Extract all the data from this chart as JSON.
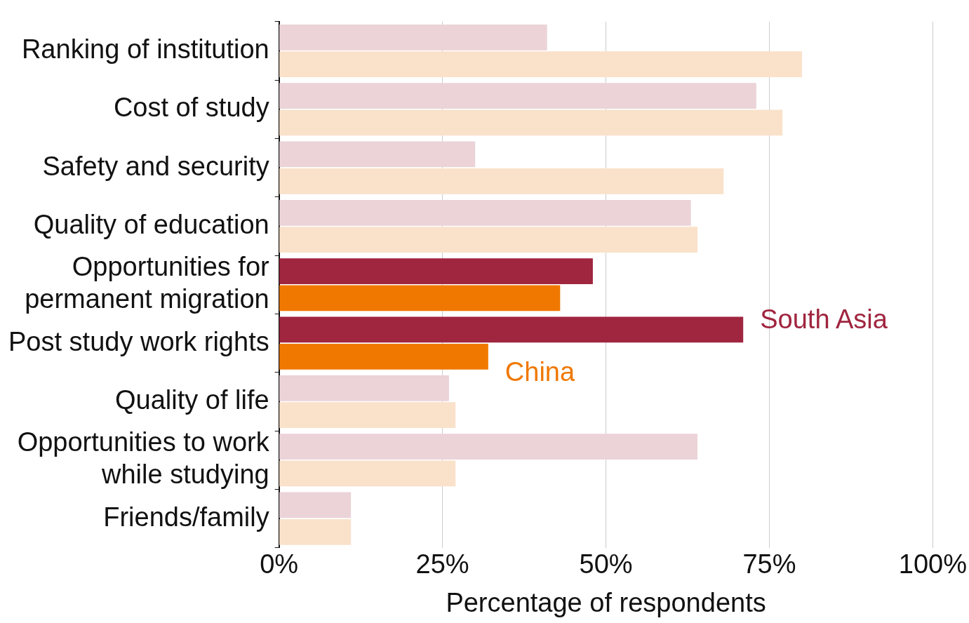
{
  "chart_data": {
    "type": "bar",
    "orientation": "horizontal",
    "xlabel": "Percentage of respondents",
    "categories": [
      "Ranking of institution",
      "Cost of study",
      "Safety and security",
      "Quality of education",
      "Opportunities for permanent migration",
      "Post study work rights",
      "Quality of life",
      "Opportunities to work while studying",
      "Friends/family"
    ],
    "series": [
      {
        "name": "South Asia",
        "color": "#a0253f",
        "colors": [
          "#ebd3d8",
          "#ebd3d8",
          "#ebd3d8",
          "#ebd3d8",
          "#a0253f",
          "#a0253f",
          "#ebd3d8",
          "#ebd3d8",
          "#ebd3d8"
        ],
        "values": [
          41,
          73,
          30,
          63,
          48,
          71,
          26,
          64,
          11
        ]
      },
      {
        "name": "China",
        "color": "#f07800",
        "colors": [
          "#fae1ca",
          "#fae1ca",
          "#fae1ca",
          "#fae1ca",
          "#f07800",
          "#f07800",
          "#fae1ca",
          "#fae1ca",
          "#fae1ca"
        ],
        "values": [
          80,
          77,
          68,
          64,
          43,
          32,
          27,
          27,
          11
        ]
      }
    ],
    "xlim": [
      0,
      100
    ],
    "xticks": [
      {
        "value": 0,
        "label": "0%"
      },
      {
        "value": 25,
        "label": "25%"
      },
      {
        "value": 50,
        "label": "50%"
      },
      {
        "value": 75,
        "label": "75%"
      },
      {
        "value": 100,
        "label": "100%"
      }
    ],
    "grid": "x",
    "legend": false
  }
}
